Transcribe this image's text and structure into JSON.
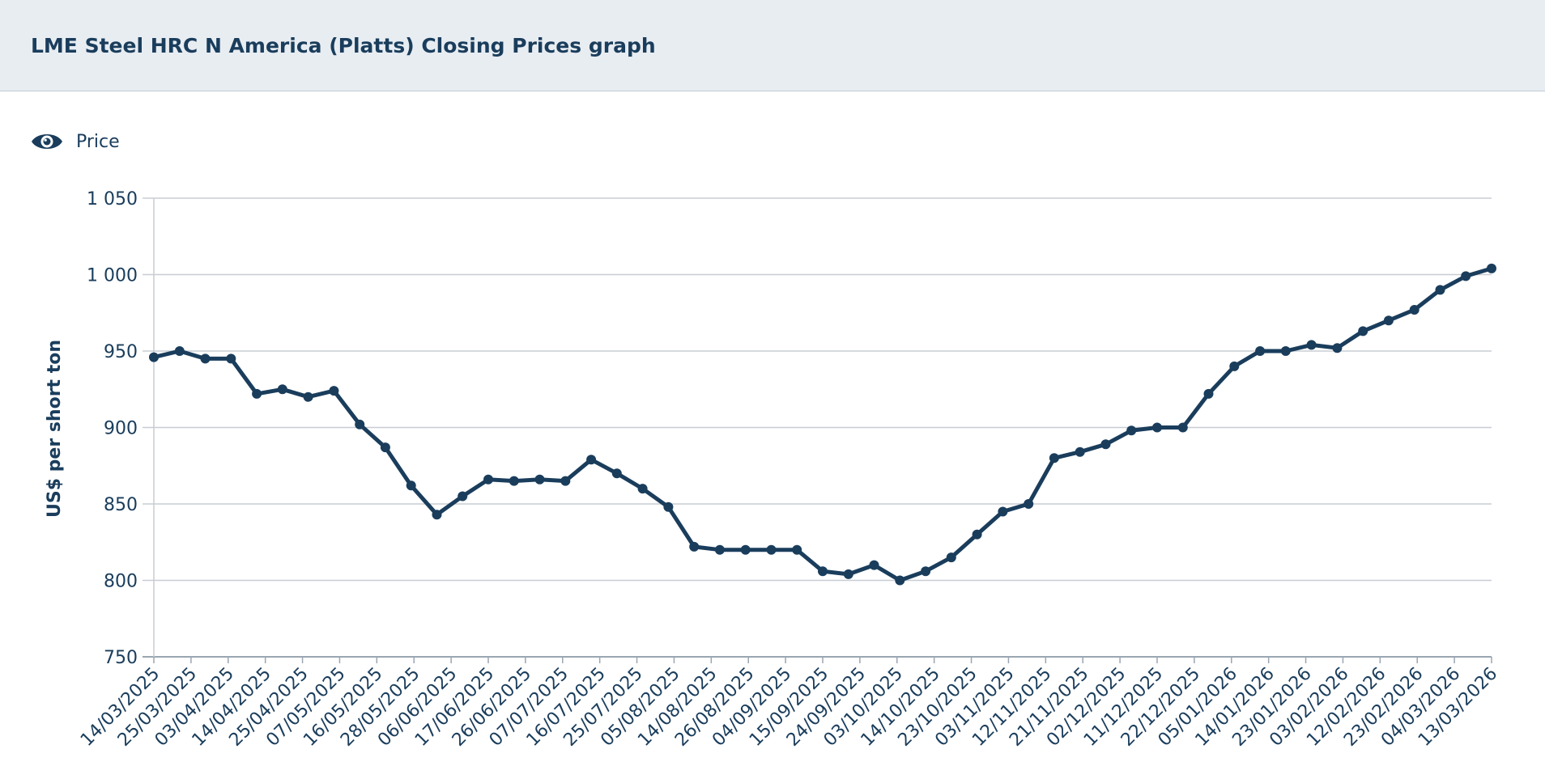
{
  "header": {
    "title": "LME Steel HRC N America (Platts) Closing Prices graph"
  },
  "legend": {
    "label": "Price",
    "icon": "eye-icon"
  },
  "colors": {
    "series": "#1a3d5c",
    "grid": "#c8cdd4",
    "header_bg": "#e8edf2",
    "text": "#1a3d5c"
  },
  "chart_data": {
    "type": "line",
    "title": "",
    "ylabel": "US$ per short ton",
    "ylim": [
      750,
      1050
    ],
    "yticks": [
      "750",
      "800",
      "850",
      "900",
      "950",
      "1 000",
      "1 050"
    ],
    "ytick_values": [
      750,
      800,
      850,
      900,
      950,
      1000,
      1050
    ],
    "x_labels": [
      "14/03/2025",
      "25/03/2025",
      "03/04/2025",
      "14/04/2025",
      "25/04/2025",
      "07/05/2025",
      "16/05/2025",
      "28/05/2025",
      "06/06/2025",
      "17/06/2025",
      "26/06/2025",
      "07/07/2025",
      "16/07/2025",
      "25/07/2025",
      "05/08/2025",
      "14/08/2025",
      "26/08/2025",
      "04/09/2025",
      "15/09/2025",
      "24/09/2025",
      "03/10/2025",
      "14/10/2025",
      "23/10/2025",
      "03/11/2025",
      "12/11/2025",
      "21/11/2025",
      "02/12/2025",
      "11/12/2025",
      "22/12/2025",
      "05/01/2026",
      "14/01/2026",
      "23/01/2026",
      "03/02/2026",
      "12/02/2026",
      "23/02/2026",
      "04/03/2026",
      "13/03/2026"
    ],
    "grid": true,
    "legend_position": "top-left",
    "series": [
      {
        "name": "Price",
        "values": [
          946,
          950,
          945,
          945,
          922,
          925,
          920,
          924,
          902,
          887,
          862,
          843,
          855,
          866,
          865,
          866,
          865,
          879,
          870,
          860,
          848,
          822,
          820,
          820,
          820,
          820,
          806,
          804,
          810,
          800,
          806,
          815,
          830,
          845,
          850,
          880,
          884,
          889,
          898,
          900,
          900,
          922,
          940,
          950,
          950,
          954,
          952,
          963,
          970,
          977,
          990,
          999,
          1004
        ]
      }
    ]
  }
}
